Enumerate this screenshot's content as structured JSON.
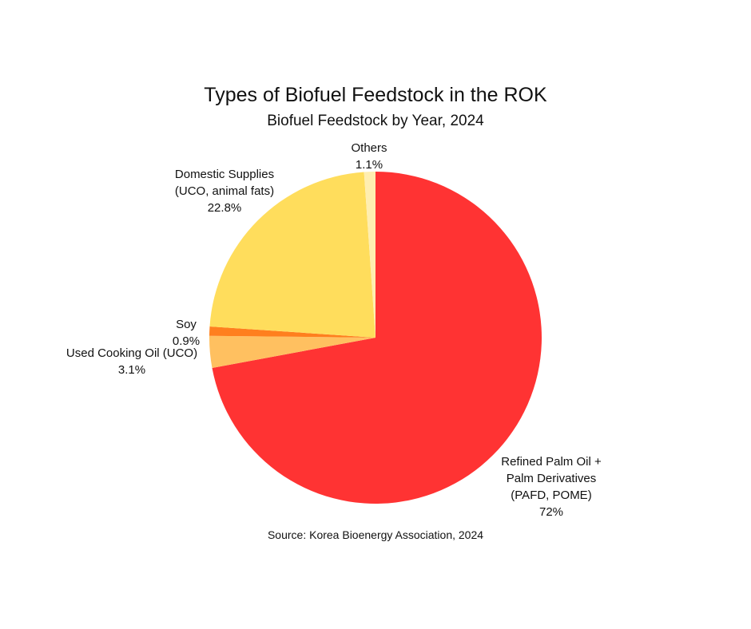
{
  "chart_data": {
    "type": "pie",
    "title": "Types of Biofuel Feedstock in the ROK",
    "subtitle": "Biofuel Feedstock by Year, 2024",
    "slices": [
      {
        "label_lines": [
          "Refined Palm Oil +",
          "Palm Derivatives",
          "(PAFD, POME)"
        ],
        "value": 72,
        "value_label": "72%",
        "color": "#ff3333"
      },
      {
        "label_lines": [
          "Used Cooking Oil (UCO)"
        ],
        "value": 3.1,
        "value_label": "3.1%",
        "color": "#ffc060"
      },
      {
        "label_lines": [
          "Soy"
        ],
        "value": 0.9,
        "value_label": "0.9%",
        "color": "#ff7f1e"
      },
      {
        "label_lines": [
          "Domestic Supplies",
          "(UCO, animal fats)"
        ],
        "value": 22.8,
        "value_label": "22.8%",
        "color": "#ffdd5c"
      },
      {
        "label_lines": [
          "Others"
        ],
        "value": 1.1,
        "value_label": "1.1%",
        "color": "#ffeeb0"
      }
    ],
    "source": "Source: Korea Bioenergy Association, 2024"
  }
}
